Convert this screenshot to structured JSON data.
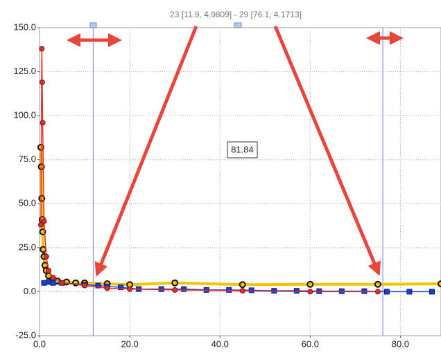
{
  "chart_data": {
    "type": "line",
    "annotation": "23 [11.9, 4.9809] - 29 [76.1, 4.1713]",
    "value_box": "81.84",
    "cursors": [
      11.9,
      76.1
    ],
    "xlim": [
      0,
      89
    ],
    "ylim": [
      -25,
      150
    ],
    "xticks": [
      {
        "value": 0,
        "label": "0.0"
      },
      {
        "value": 20,
        "label": "20.0"
      },
      {
        "value": 40,
        "label": "40.0"
      },
      {
        "value": 60,
        "label": "60.0"
      },
      {
        "value": 80,
        "label": "80.0"
      }
    ],
    "yticks": [
      {
        "value": -25,
        "label": "-25.0"
      },
      {
        "value": 0,
        "label": "0.0"
      },
      {
        "value": 25,
        "label": "25.0"
      },
      {
        "value": 50,
        "label": "50.0"
      },
      {
        "value": 75,
        "label": "75.0"
      },
      {
        "value": 100,
        "label": "100.0"
      },
      {
        "value": 125,
        "label": "125.0"
      },
      {
        "value": 150,
        "label": "150.0"
      }
    ],
    "grid": true,
    "series": [
      {
        "color": "#f5c400",
        "marker": "circle-outline",
        "x": [
          0.3,
          0.4,
          0.5,
          0.6,
          0.7,
          0.8,
          1,
          1.2,
          1.5,
          2,
          3,
          4,
          6,
          8,
          10,
          15,
          20,
          30,
          45,
          60,
          75,
          89
        ],
        "values": [
          82,
          71,
          53,
          41,
          34,
          24,
          20,
          15,
          12,
          9,
          7,
          6,
          5.5,
          5,
          5,
          4.5,
          4,
          5,
          4,
          4.2,
          4.2,
          4.5
        ]
      },
      {
        "color": "#1a3fcc",
        "marker": "square",
        "x": [
          1,
          2,
          3,
          5,
          10,
          13,
          15,
          18,
          22,
          27,
          32,
          37,
          42,
          47,
          52,
          57,
          62,
          67,
          72,
          77,
          82,
          87
        ],
        "values": [
          5,
          5.5,
          5,
          5,
          4,
          3.5,
          3,
          2.5,
          1.5,
          1.5,
          1.5,
          1,
          1,
          0.8,
          0.5,
          0.5,
          0.3,
          0.3,
          0.3,
          0,
          0,
          0
        ]
      },
      {
        "color": "#e0302a",
        "marker": "circle",
        "x": [
          0.3,
          0.5,
          0.6,
          0.7,
          1,
          1.5,
          2,
          3,
          5,
          10,
          15,
          20,
          30,
          45,
          60,
          75
        ],
        "values": [
          38,
          138,
          119,
          96,
          40,
          20,
          12,
          8,
          5,
          3.5,
          2,
          1.5,
          1,
          0.5,
          0,
          0
        ]
      }
    ]
  }
}
